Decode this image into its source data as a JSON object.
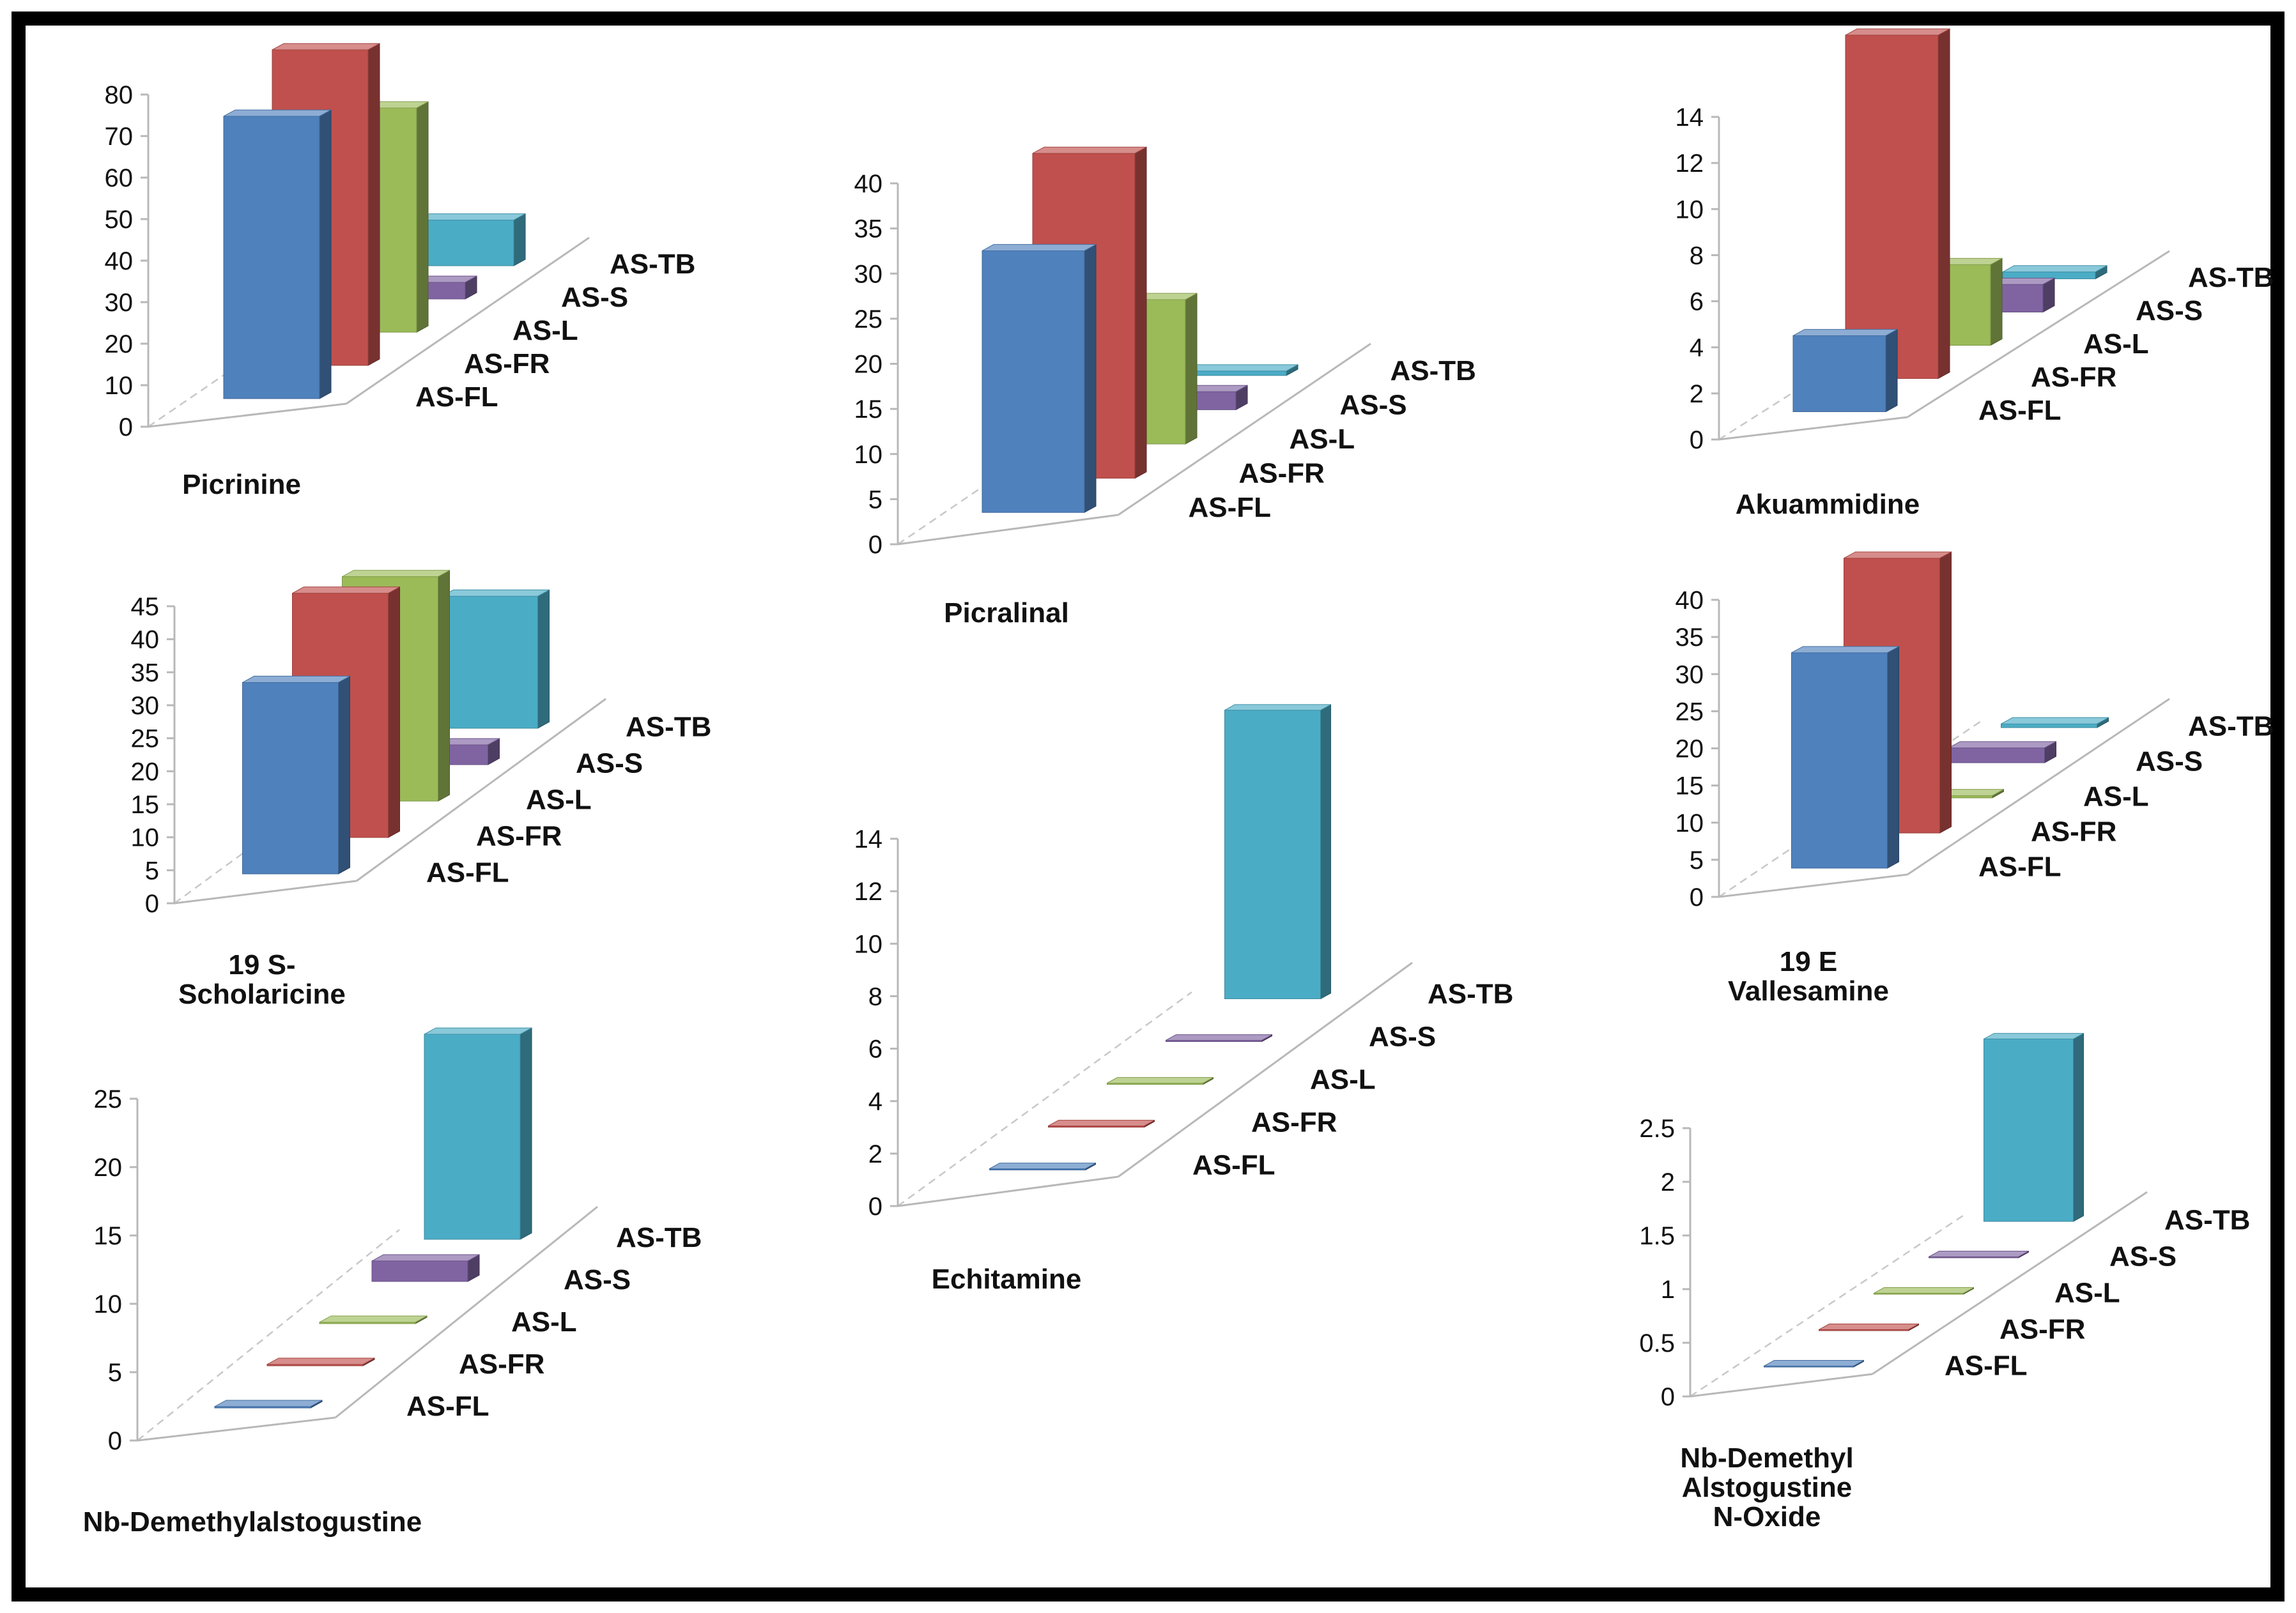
{
  "series_colors": {
    "AS-FL": "#4f81bd",
    "AS-FR": "#c0504d",
    "AS-L": "#9bbb59",
    "AS-S": "#8064a2",
    "AS-TB": "#4bacc6"
  },
  "chart_data": [
    {
      "type": "bar",
      "title": "Picrinine",
      "categories": [
        "AS-FL",
        "AS-FR",
        "AS-L",
        "AS-S",
        "AS-TB"
      ],
      "values": [
        68,
        76,
        54,
        4,
        11
      ],
      "yticks": [
        "0",
        "10",
        "20",
        "30",
        "40",
        "50",
        "60",
        "70",
        "80"
      ],
      "ylim": [
        0,
        80
      ]
    },
    {
      "type": "bar",
      "title": "Picralinal",
      "categories": [
        "AS-FL",
        "AS-FR",
        "AS-L",
        "AS-S",
        "AS-TB"
      ],
      "values": [
        29,
        36,
        16,
        2,
        0.5
      ],
      "yticks": [
        "0",
        "5",
        "10",
        "15",
        "20",
        "25",
        "30",
        "35",
        "40"
      ],
      "ylim": [
        0,
        40
      ]
    },
    {
      "type": "bar",
      "title": "Akuammidine",
      "categories": [
        "AS-FL",
        "AS-FR",
        "AS-L",
        "AS-S",
        "AS-TB"
      ],
      "values": [
        3.3,
        14.9,
        3.5,
        1.2,
        0.3
      ],
      "yticks": [
        "0",
        "2",
        "4",
        "6",
        "8",
        "10",
        "12",
        "14"
      ],
      "ylim": [
        0,
        14
      ]
    },
    {
      "type": "bar",
      "title": "19 S-Scholaricine",
      "title_lines": [
        "19 S-",
        "Scholaricine"
      ],
      "categories": [
        "AS-FL",
        "AS-FR",
        "AS-L",
        "AS-S",
        "AS-TB"
      ],
      "values": [
        29,
        37,
        34,
        3,
        20
      ],
      "yticks": [
        "0",
        "5",
        "10",
        "15",
        "20",
        "25",
        "30",
        "35",
        "40",
        "45"
      ],
      "ylim": [
        0,
        45
      ]
    },
    {
      "type": "bar",
      "title": "Echitamine",
      "categories": [
        "AS-FL",
        "AS-FR",
        "AS-L",
        "AS-S",
        "AS-TB"
      ],
      "values": [
        0.05,
        0.05,
        0.05,
        0.05,
        11
      ],
      "yticks": [
        "0",
        "2",
        "4",
        "6",
        "8",
        "10",
        "12",
        "14"
      ],
      "ylim": [
        0,
        14
      ]
    },
    {
      "type": "bar",
      "title": "19 E Vallesamine",
      "title_lines": [
        "19 E",
        "Vallesamine"
      ],
      "categories": [
        "AS-FL",
        "AS-FR",
        "AS-L",
        "AS-S",
        "AS-TB"
      ],
      "values": [
        29,
        37,
        0.3,
        2,
        0.5
      ],
      "yticks": [
        "0",
        "5",
        "10",
        "15",
        "20",
        "25",
        "30",
        "35",
        "40"
      ],
      "ylim": [
        0,
        40
      ]
    },
    {
      "type": "bar",
      "title": "Nb-Demethylalstogustine",
      "categories": [
        "AS-FL",
        "AS-FR",
        "AS-L",
        "AS-S",
        "AS-TB"
      ],
      "values": [
        0.1,
        0.1,
        0.1,
        1.5,
        15
      ],
      "yticks": [
        "0",
        "5",
        "10",
        "15",
        "20",
        "25"
      ],
      "ylim": [
        0,
        25
      ]
    },
    {
      "type": "bar",
      "title": "Nb-Demethyl Alstogustine N-Oxide",
      "title_lines": [
        "Nb-Demethyl",
        "Alstogustine",
        "N-Oxide"
      ],
      "categories": [
        "AS-FL",
        "AS-FR",
        "AS-L",
        "AS-S",
        "AS-TB"
      ],
      "values": [
        0.01,
        0.01,
        0.01,
        0.01,
        1.7
      ],
      "yticks": [
        "0",
        "0.5",
        "1",
        "1.5",
        "2",
        "2.5"
      ],
      "ylim": [
        0,
        2.5
      ]
    }
  ]
}
